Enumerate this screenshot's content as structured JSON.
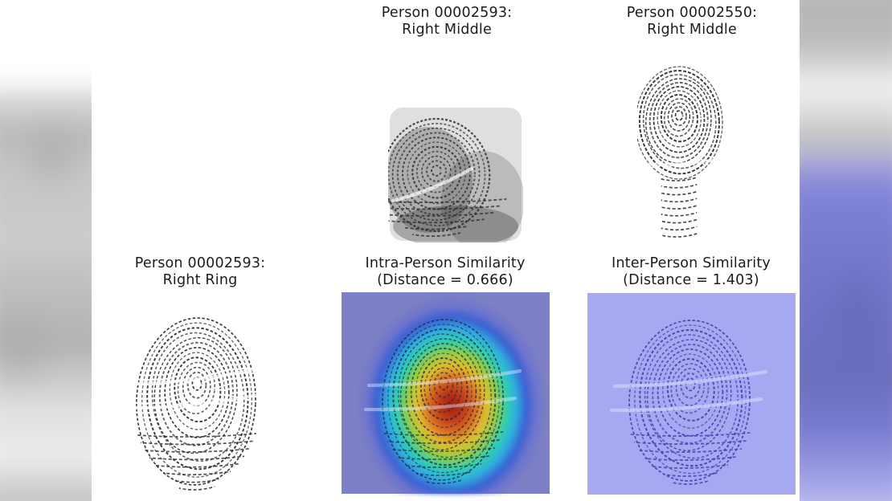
{
  "figure": {
    "description": "Fingerprint similarity comparison figure with five panels",
    "panels": {
      "top_middle": {
        "line1": "Person 00002593:",
        "line2": "Right Middle"
      },
      "top_right": {
        "line1": "Person 00002550:",
        "line2": "Right Middle"
      },
      "bottom_left": {
        "line1": "Person 00002593:",
        "line2": "Right Ring"
      },
      "intra": {
        "line1": "Intra-Person Similarity",
        "line2": "(Distance = 0.666)"
      },
      "inter": {
        "line1": "Inter-Person Similarity",
        "line2": "(Distance = 1.403)"
      }
    },
    "distances": {
      "intra": 0.666,
      "inter": 1.403
    },
    "colors": {
      "intra_panel_bg": "#7d80c4",
      "inter_panel_bg": "#a7a8f2",
      "heatmap_scale": [
        "#9e1c12",
        "#bd3618",
        "#d96a20",
        "#e2bd2e",
        "#97ce3f",
        "#2fcfae",
        "#2fb0e0",
        "#3a5fd2"
      ],
      "side_blur_purple": "#7678cc",
      "side_blur_gray": "#c2c2c2",
      "fingerprint_ink": "#262626",
      "inter_fingerprint_ink": "#4646ae",
      "text": "#1c1c1c"
    }
  }
}
